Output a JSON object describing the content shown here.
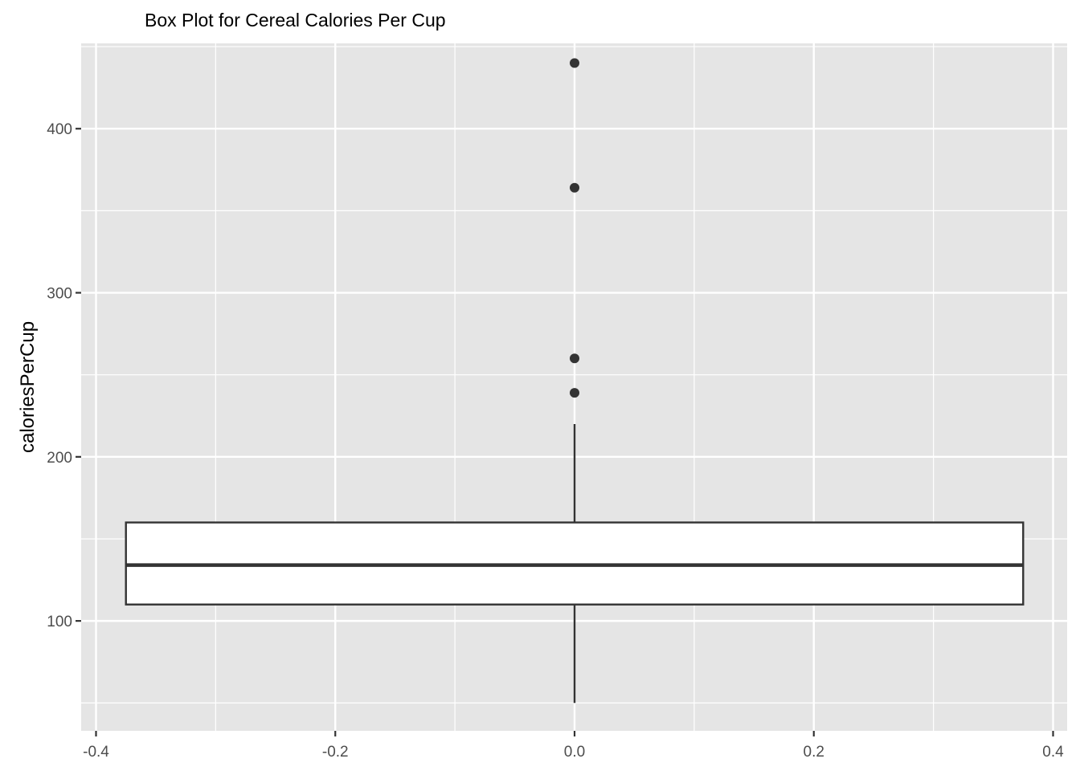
{
  "chart_data": {
    "type": "boxplot",
    "title": "Box Plot for Cereal Calories Per Cup",
    "xlabel": "",
    "ylabel": "caloriesPerCup",
    "xlim": [
      -0.4,
      0.4
    ],
    "ylim": [
      33,
      452
    ],
    "x_ticks": [
      -0.4,
      -0.2,
      0.0,
      0.2,
      0.4
    ],
    "x_tick_labels": [
      "-0.4",
      "-0.2",
      "0.0",
      "0.2",
      "0.4"
    ],
    "y_ticks": [
      100,
      200,
      300,
      400
    ],
    "y_tick_labels": [
      "100",
      "200",
      "300",
      "400"
    ],
    "grid": true,
    "box": {
      "x_center": 0.0,
      "x_min": -0.375,
      "x_max": 0.375,
      "whisker_low": 50,
      "q1": 110,
      "median": 134,
      "q3": 160,
      "whisker_high": 220
    },
    "outliers": [
      440,
      364,
      260,
      239
    ],
    "colors": {
      "panel": "#e5e5e5",
      "grid": "#ffffff",
      "box_fill": "#ffffff",
      "box_line": "#333333",
      "outlier": "#333333"
    }
  }
}
